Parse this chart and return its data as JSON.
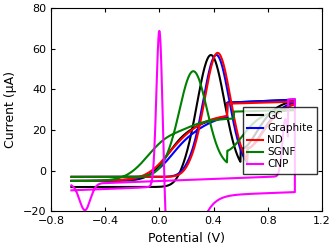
{
  "title": "",
  "xlabel": "Potential (V)",
  "ylabel": "Current (μA)",
  "xlim": [
    -0.8,
    1.2
  ],
  "ylim": [
    -20,
    80
  ],
  "xticks": [
    -0.8,
    -0.4,
    0.0,
    0.4,
    0.8,
    1.2
  ],
  "yticks": [
    -20,
    0,
    20,
    40,
    60,
    80
  ],
  "legend": [
    "GC",
    "Graphite",
    "ND",
    "SGNF",
    "CNP"
  ],
  "colors": [
    "black",
    "blue",
    "red",
    "green",
    "magenta"
  ],
  "linewidths": [
    1.5,
    1.5,
    1.5,
    1.5,
    1.5
  ],
  "background": "white"
}
